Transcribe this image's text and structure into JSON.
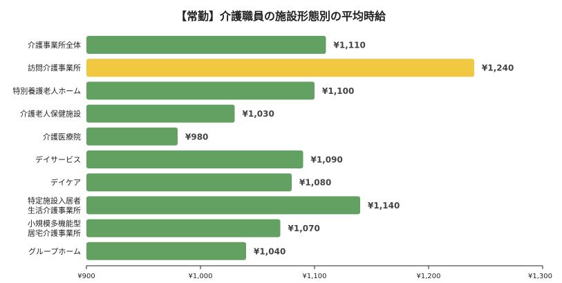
{
  "chart_data": {
    "type": "bar",
    "orientation": "horizontal",
    "title": "【常勤】介護職員の施設形態別の平均時給",
    "categories": [
      [
        "介護事業所全体"
      ],
      [
        "訪問介護事業所"
      ],
      [
        "特別養護老人ホーム"
      ],
      [
        "介護老人保健施設"
      ],
      [
        "介護医療院"
      ],
      [
        "デイサービス"
      ],
      [
        "デイケア"
      ],
      [
        "特定施設入居者",
        "生活介護事業所"
      ],
      [
        "小規模多機能型",
        "居宅介護事業所"
      ],
      [
        "グループホーム"
      ]
    ],
    "values": [
      1110,
      1240,
      1100,
      1030,
      980,
      1090,
      1080,
      1140,
      1070,
      1040
    ],
    "value_labels": [
      "¥1,110",
      "¥1,240",
      "¥1,100",
      "¥1,030",
      "¥980",
      "¥1,090",
      "¥1,080",
      "¥1,140",
      "¥1,070",
      "¥1,040"
    ],
    "xlim": [
      900,
      1300
    ],
    "xticks": [
      900,
      1000,
      1100,
      1200,
      1300
    ],
    "xtick_labels": [
      "¥900",
      "¥1,000",
      "¥1,100",
      "¥1,200",
      "¥1,300"
    ],
    "highlight_index": 1,
    "colors": {
      "bar": "#63a162",
      "highlight": "#f0c842",
      "axis": "#222222"
    },
    "grid": false,
    "legend": "none"
  }
}
